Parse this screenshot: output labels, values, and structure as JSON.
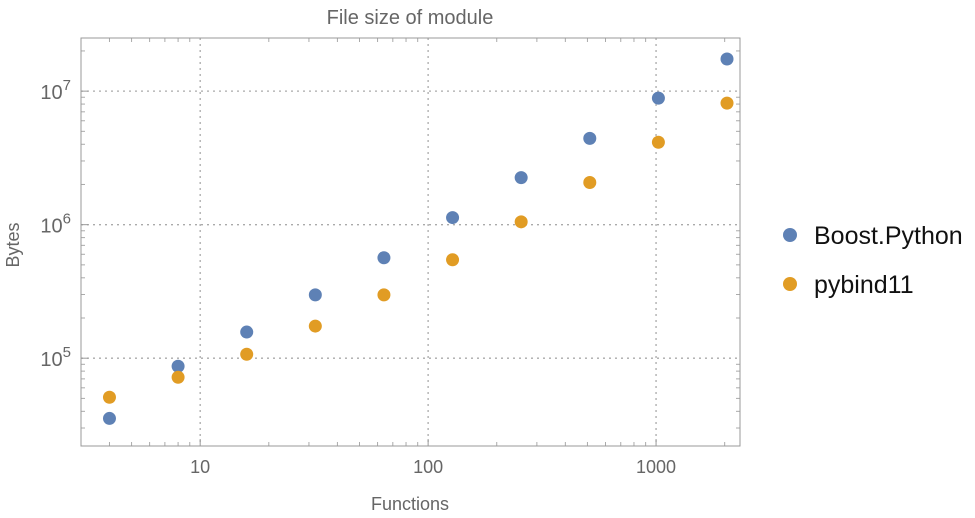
{
  "chart_data": {
    "type": "scatter",
    "title": "File size of module",
    "xlabel": "Functions",
    "ylabel": "Bytes",
    "x_scale": "log",
    "y_scale": "log",
    "xlim": [
      3,
      2335
    ],
    "ylim": [
      22000,
      25000000
    ],
    "x_ticks": [
      {
        "value": 10,
        "label": "10"
      },
      {
        "value": 100,
        "label": "100"
      },
      {
        "value": 1000,
        "label": "1000"
      }
    ],
    "y_ticks": [
      {
        "value": 100000,
        "base": "10",
        "exp": "5"
      },
      {
        "value": 1000000,
        "base": "10",
        "exp": "6"
      },
      {
        "value": 10000000,
        "base": "10",
        "exp": "7"
      }
    ],
    "grid": true,
    "legend_position": "right",
    "x": [
      4,
      8,
      16,
      32,
      64,
      128,
      256,
      512,
      1024,
      2048
    ],
    "series": [
      {
        "name": "Boost.Python",
        "color": "#5e81b5",
        "values": [
          35400,
          87000,
          157000,
          298000,
          565000,
          1130000,
          2250000,
          4430000,
          8860000,
          17400000
        ]
      },
      {
        "name": "pybind11",
        "color": "#e19c24",
        "values": [
          51000,
          72000,
          107000,
          174000,
          298000,
          546000,
          1050000,
          2070000,
          4140000,
          8130000
        ]
      }
    ]
  }
}
